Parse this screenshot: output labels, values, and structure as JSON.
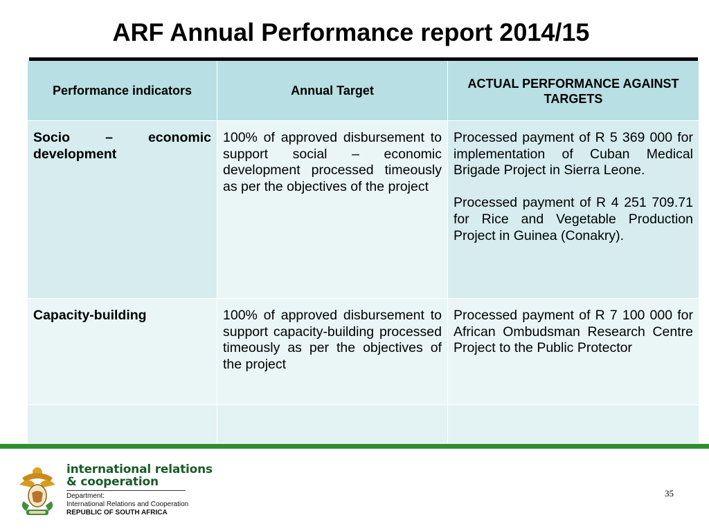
{
  "slide": {
    "title": "ARF Annual Performance report 2014/15",
    "page_number": "35"
  },
  "table": {
    "headers": [
      "Performance indicators",
      "Annual Target",
      "ACTUAL PERFORMANCE AGAINST TARGETS"
    ],
    "rows": [
      {
        "indicator": "Socio – economic development",
        "target": "100% of approved disbursement to support social – economic development processed timeously as per the objectives of the project",
        "actual": [
          "Processed payment of R 5 369 000 for implementation of Cuban Medical Brigade Project in Sierra Leone.",
          "Processed payment of R 4 251 709.71 for Rice and Vegetable Production Project in Guinea (Conakry)."
        ]
      },
      {
        "indicator": "Capacity-building",
        "target": "100% of approved disbursement to support capacity-building processed timeously as per the objectives of the project",
        "actual": [
          "Processed payment of R 7 100 000 for African Ombudsman Research Centre Project to the Public Protector"
        ]
      }
    ]
  },
  "footer": {
    "brand_line1": "international relations",
    "brand_line2": "& cooperation",
    "dept_line1": "Department:",
    "dept_line2": "International Relations and Cooperation",
    "dept_line3": "REPUBLIC OF SOUTH AFRICA",
    "logo_icon": "coat-of-arms-icon"
  },
  "colors": {
    "header_bg": "#b8dfe3",
    "row_bg": "#eaf5f6",
    "accent_green": "#2f8f2f"
  }
}
